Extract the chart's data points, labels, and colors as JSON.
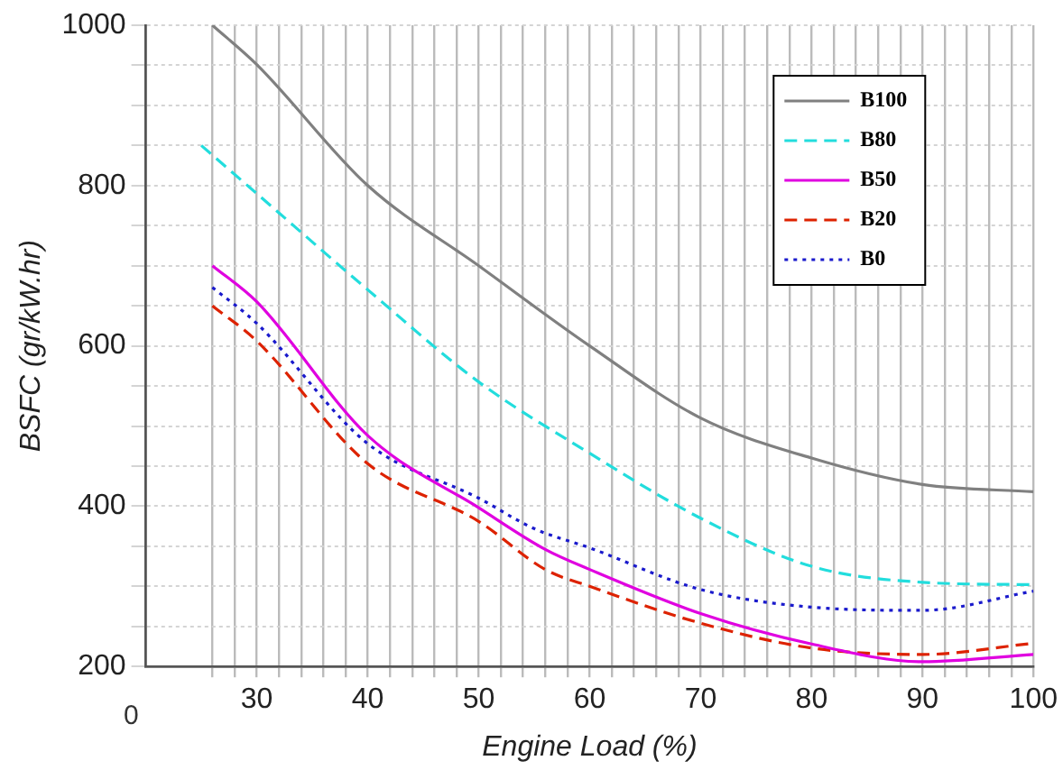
{
  "chart_data": {
    "type": "line",
    "xlabel": "Engine Load (%)",
    "ylabel": "BSFC (gr/kW.hr)",
    "xlim": [
      20,
      100
    ],
    "xticks": [
      {
        "value": 26,
        "label": null
      },
      {
        "value": 28,
        "label": null
      },
      30,
      {
        "value": 32,
        "label": null
      },
      {
        "value": 34,
        "label": null
      },
      {
        "value": 36,
        "label": null
      },
      {
        "value": 38,
        "label": null
      },
      40,
      {
        "value": 42,
        "label": null
      },
      {
        "value": 44,
        "label": null
      },
      {
        "value": 46,
        "label": null
      },
      {
        "value": 48,
        "label": null
      },
      50,
      {
        "value": 52,
        "label": null
      },
      {
        "value": 54,
        "label": null
      },
      {
        "value": 56,
        "label": null
      },
      {
        "value": 58,
        "label": null
      },
      60,
      {
        "value": 62,
        "label": null
      },
      {
        "value": 64,
        "label": null
      },
      {
        "value": 66,
        "label": null
      },
      {
        "value": 68,
        "label": null
      },
      70,
      {
        "value": 72,
        "label": null
      },
      {
        "value": 74,
        "label": null
      },
      {
        "value": 76,
        "label": null
      },
      {
        "value": 78,
        "label": null
      },
      80,
      {
        "value": 82,
        "label": null
      },
      {
        "value": 84,
        "label": null
      },
      {
        "value": 86,
        "label": null
      },
      {
        "value": 88,
        "label": null
      },
      90,
      {
        "value": 92,
        "label": null
      },
      {
        "value": 94,
        "label": null
      },
      {
        "value": 96,
        "label": null
      },
      {
        "value": 98,
        "label": null
      },
      100
    ],
    "ylim": [
      200,
      1000
    ],
    "yticks": [
      200,
      {
        "value": 250,
        "label": null
      },
      {
        "value": 300,
        "label": null
      },
      {
        "value": 350,
        "label": null
      },
      400,
      {
        "value": 450,
        "label": null
      },
      {
        "value": 500,
        "label": null
      },
      {
        "value": 550,
        "label": null
      },
      600,
      {
        "value": 650,
        "label": null
      },
      {
        "value": 700,
        "label": null
      },
      {
        "value": 750,
        "label": null
      },
      800,
      {
        "value": 850,
        "label": null
      },
      {
        "value": 900,
        "label": null
      },
      {
        "value": 950,
        "label": null
      },
      1000
    ],
    "grid": true,
    "legend": "top right",
    "marker": "none",
    "annotations": [
      "0"
    ],
    "series": [
      {
        "name": "B100",
        "color": "#808080",
        "line_style": "solid",
        "x": [
          26,
          30,
          40,
          50,
          60,
          70,
          80,
          90,
          100
        ],
        "values": [
          1000,
          951,
          800,
          700,
          600,
          510,
          460,
          427,
          418
        ]
      },
      {
        "name": "B80",
        "color": "#22dddd",
        "line_style": "dashed",
        "x": [
          25,
          30,
          40,
          50,
          60,
          70,
          80,
          90,
          100
        ],
        "values": [
          850,
          790,
          670,
          555,
          466,
          385,
          325,
          305,
          302
        ]
      },
      {
        "name": "B50",
        "color": "#e000e0",
        "line_style": "solid",
        "x": [
          26,
          30,
          40,
          50,
          56,
          60,
          70,
          80,
          90,
          100
        ],
        "values": [
          700,
          655,
          488,
          398,
          346,
          321,
          266,
          228,
          206,
          215
        ]
      },
      {
        "name": "B20",
        "color": "#dd2200",
        "line_style": "dashed",
        "x": [
          26,
          30,
          40,
          50,
          56,
          60,
          70,
          80,
          90,
          100
        ],
        "values": [
          650,
          606,
          453,
          381,
          321,
          300,
          254,
          223,
          215,
          229
        ]
      },
      {
        "name": "B0",
        "color": "#1a1acc",
        "line_style": "dotted",
        "x": [
          26,
          30,
          40,
          50,
          55,
          60,
          70,
          80,
          90,
          100
        ],
        "values": [
          673,
          628,
          478,
          410,
          372,
          348,
          296,
          274,
          270,
          294
        ]
      }
    ]
  }
}
